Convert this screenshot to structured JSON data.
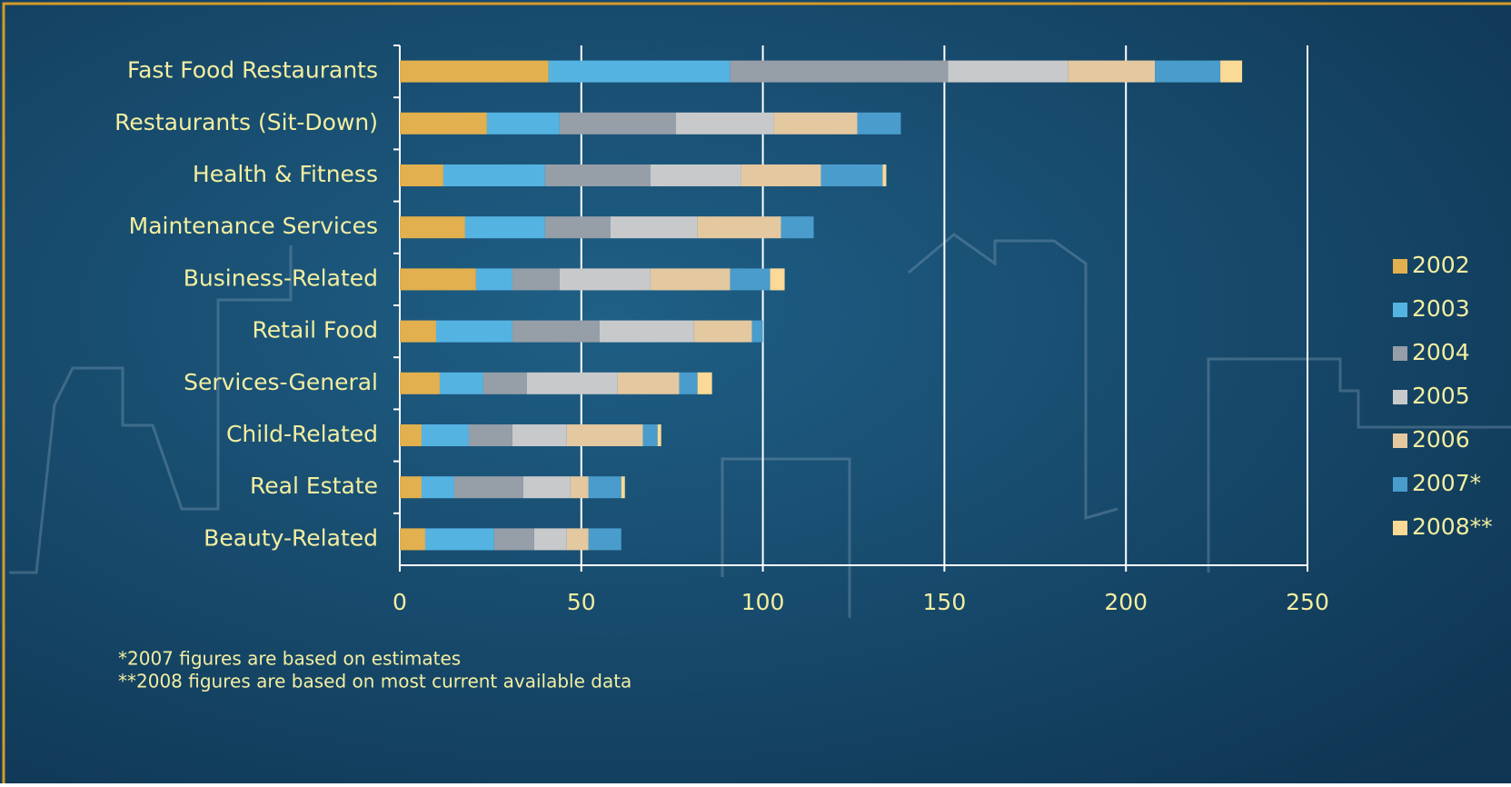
{
  "chart_data": {
    "type": "stacked-bar-horizontal",
    "categories": [
      "Fast Food Restaurants",
      "Restaurants (Sit-Down)",
      "Health & Fitness",
      "Maintenance Services",
      "Business-Related",
      "Retail Food",
      "Services-General",
      "Child-Related",
      "Real Estate",
      "Beauty-Related"
    ],
    "series": [
      {
        "name": "2002",
        "color": "#e2b04e",
        "values": [
          41,
          24,
          12,
          18,
          21,
          10,
          11,
          6,
          6,
          7
        ]
      },
      {
        "name": "2003",
        "color": "#55b3e2",
        "values": [
          50,
          20,
          28,
          22,
          10,
          21,
          12,
          13,
          9,
          19
        ]
      },
      {
        "name": "2004",
        "color": "#969ea8",
        "values": [
          60,
          32,
          29,
          18,
          13,
          24,
          12,
          12,
          19,
          11
        ]
      },
      {
        "name": "2005",
        "color": "#c8c9cb",
        "values": [
          33,
          27,
          25,
          24,
          25,
          26,
          25,
          15,
          13,
          9
        ]
      },
      {
        "name": "2006",
        "color": "#e3c8a0",
        "values": [
          24,
          23,
          22,
          23,
          22,
          16,
          17,
          21,
          5,
          6
        ]
      },
      {
        "name": "2007*",
        "color": "#4a9ccc",
        "values": [
          18,
          12,
          17,
          9,
          11,
          3,
          5,
          4,
          9,
          9
        ]
      },
      {
        "name": "2008**",
        "color": "#fbd996",
        "values": [
          6,
          null,
          1,
          null,
          4,
          null,
          4,
          1,
          1,
          null
        ]
      }
    ],
    "xlim": [
      0,
      250
    ],
    "xticks": [
      0,
      50,
      100,
      150,
      200,
      250
    ],
    "grid": true,
    "legend": "right",
    "notes": [
      "*2007 figures are based on estimates",
      "**2008 figures are based on most current available data"
    ]
  }
}
